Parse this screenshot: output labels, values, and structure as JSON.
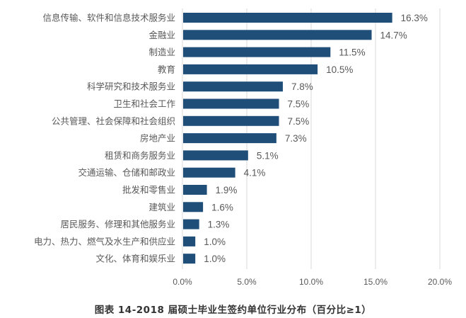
{
  "chart_data": {
    "type": "bar",
    "orientation": "horizontal",
    "title": "",
    "caption": "图表 14-2018 届硕士毕业生签约单位行业分布（百分比≥1）",
    "xlabel": "",
    "ylabel": "",
    "xlim": [
      0,
      20
    ],
    "x_ticks": [
      0,
      5,
      10,
      15,
      20
    ],
    "x_tick_labels": [
      "0.0%",
      "5.0%",
      "10.0%",
      "15.0%",
      "20.0%"
    ],
    "grid": "vertical",
    "legend": "none",
    "bar_color": "#1f4e79",
    "categories": [
      "信息传输、软件和信息技术服务业",
      "金融业",
      "制造业",
      "教育",
      "科学研究和技术服务业",
      "卫生和社会工作",
      "公共管理、社会保障和社会组织",
      "房地产业",
      "租赁和商务服务业",
      "交通运输、仓储和邮政业",
      "批发和零售业",
      "建筑业",
      "居民服务、修理和其他服务业",
      "电力、热力、燃气及水生产和供应业",
      "文化、体育和娱乐业"
    ],
    "values": [
      16.3,
      14.7,
      11.5,
      10.5,
      7.8,
      7.5,
      7.5,
      7.3,
      5.1,
      4.1,
      1.9,
      1.6,
      1.3,
      1.0,
      1.0
    ],
    "value_labels": [
      "16.3%",
      "14.7%",
      "11.5%",
      "10.5%",
      "7.8%",
      "7.5%",
      "7.5%",
      "7.3%",
      "5.1%",
      "4.1%",
      "1.9%",
      "1.6%",
      "1.3%",
      "1.0%",
      "1.0%"
    ]
  }
}
